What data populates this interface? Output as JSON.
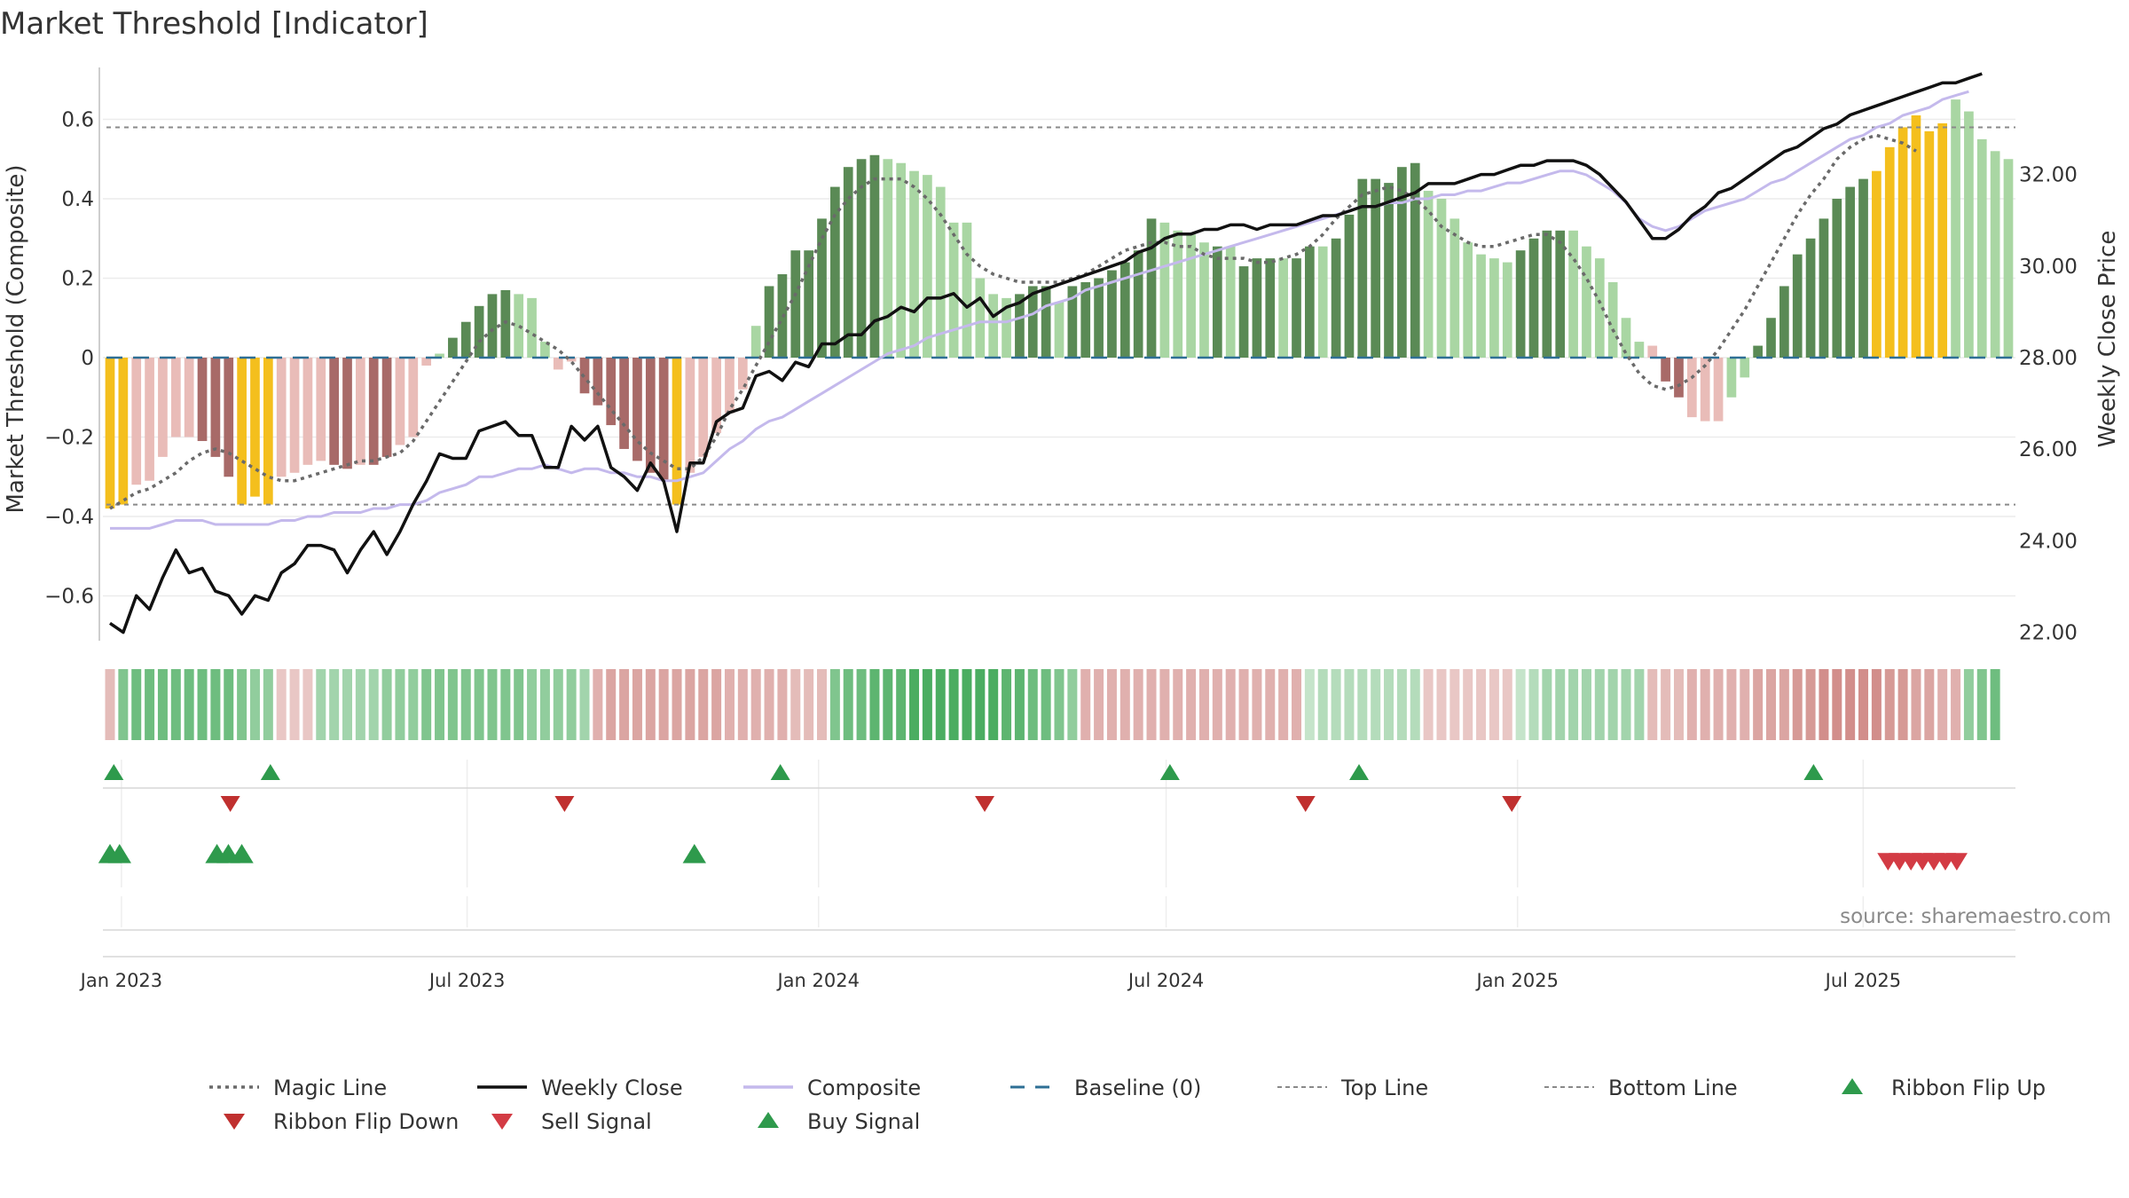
{
  "title": "Market Threshold [Indicator]",
  "source": "source: sharemaestro.com",
  "colors": {
    "bull_strong": "#5a8a55",
    "bull_light": "#a9d6a3",
    "bear_strong": "#a86a68",
    "bear_light": "#e9bcb8",
    "extreme": "#f4bf1d",
    "composite": "#c4b9ec",
    "close": "#111111",
    "magic": "#6a6a6a",
    "baseline": "#2e6f95",
    "buy": "#2e9a4c",
    "sell": "#d33b44"
  },
  "chart_data": {
    "type": "bar",
    "title": "Market Threshold [Indicator]",
    "ylabel_left": "Market Threshold (Composite)",
    "ylabel_right": "Weekly Close Price",
    "ylim_left": [
      -0.72,
      0.72
    ],
    "ylim_right": [
      21.0,
      34.4
    ],
    "left_ticks": [
      0.6,
      0.4,
      0.2,
      0,
      -0.2,
      -0.4,
      -0.6
    ],
    "left_tick_labels": [
      "0.6",
      "0.4",
      "0.2",
      "0",
      "−0.2",
      "−0.4",
      "−0.6"
    ],
    "right_ticks": [
      32,
      30,
      28,
      26,
      24,
      22
    ],
    "right_tick_labels": [
      "32.00",
      "30.00",
      "28.00",
      "26.00",
      "24.00",
      "22.00"
    ],
    "x_start": "2022-12-26",
    "x_end": "2025-09-15",
    "x_ticks": [
      "2023-01-01",
      "2023-07-01",
      "2024-01-01",
      "2024-07-01",
      "2025-01-01",
      "2025-07-01"
    ],
    "x_tick_labels": [
      "Jan 2023",
      "Jul 2023",
      "Jan 2024",
      "Jul 2024",
      "Jan 2025",
      "Jul 2025"
    ],
    "top_line": 0.58,
    "bottom_line": -0.37,
    "grid": true,
    "legend_position": "bottom",
    "weeks": [
      "2022-12-26",
      "2025-09-15"
    ],
    "composite_bars": [
      -0.38,
      -0.37,
      -0.32,
      -0.31,
      -0.25,
      -0.2,
      -0.2,
      -0.21,
      -0.25,
      -0.3,
      -0.37,
      -0.35,
      -0.37,
      -0.3,
      -0.29,
      -0.27,
      -0.26,
      -0.27,
      -0.28,
      -0.27,
      -0.27,
      -0.25,
      -0.22,
      -0.2,
      -0.02,
      0.01,
      0.05,
      0.09,
      0.13,
      0.16,
      0.17,
      0.16,
      0.15,
      0.04,
      -0.03,
      -0.01,
      -0.09,
      -0.12,
      -0.17,
      -0.23,
      -0.26,
      -0.29,
      -0.31,
      -0.37,
      -0.29,
      -0.25,
      -0.19,
      -0.14,
      -0.08,
      0.08,
      0.18,
      0.21,
      0.27,
      0.27,
      0.35,
      0.43,
      0.48,
      0.5,
      0.51,
      0.5,
      0.49,
      0.47,
      0.46,
      0.43,
      0.34,
      0.34,
      0.2,
      0.16,
      0.15,
      0.16,
      0.18,
      0.18,
      0.14,
      0.18,
      0.19,
      0.2,
      0.22,
      0.24,
      0.27,
      0.35,
      0.34,
      0.32,
      0.31,
      0.29,
      0.28,
      0.28,
      0.23,
      0.25,
      0.25,
      0.25,
      0.25,
      0.28,
      0.28,
      0.3,
      0.36,
      0.45,
      0.45,
      0.44,
      0.48,
      0.49,
      0.42,
      0.4,
      0.35,
      0.29,
      0.26,
      0.25,
      0.24,
      0.27,
      0.3,
      0.32,
      0.32,
      0.32,
      0.28,
      0.25,
      0.19,
      0.1,
      0.04,
      0.03,
      -0.06,
      -0.1,
      -0.15,
      -0.16,
      -0.16,
      -0.1,
      -0.05,
      0.03,
      0.1,
      0.18,
      0.26,
      0.3,
      0.35,
      0.4,
      0.43,
      0.45,
      0.47,
      0.53,
      0.58,
      0.61,
      0.57,
      0.59,
      0.65,
      0.62,
      0.55,
      0.52,
      0.5
    ],
    "bar_classes": [
      "Y",
      "Y",
      "BL",
      "BL",
      "BL",
      "BL",
      "BL",
      "BS",
      "BS",
      "BS",
      "Y",
      "Y",
      "Y",
      "BL",
      "BL",
      "BL",
      "BL",
      "BS",
      "BS",
      "BL",
      "BS",
      "BS",
      "BL",
      "BL",
      "BL",
      "GL",
      "GS",
      "GS",
      "GS",
      "GS",
      "GS",
      "GL",
      "GL",
      "GL",
      "BL",
      "BL",
      "BS",
      "BS",
      "BS",
      "BS",
      "BS",
      "BS",
      "BS",
      "Y",
      "BL",
      "BL",
      "BL",
      "BL",
      "BL",
      "GL",
      "GS",
      "GS",
      "GS",
      "GS",
      "GS",
      "GS",
      "GS",
      "GS",
      "GS",
      "GL",
      "GL",
      "GL",
      "GL",
      "GL",
      "GL",
      "GL",
      "GL",
      "GL",
      "GL",
      "GS",
      "GS",
      "GS",
      "GL",
      "GS",
      "GS",
      "GS",
      "GS",
      "GS",
      "GS",
      "GS",
      "GL",
      "GL",
      "GL",
      "GL",
      "GS",
      "GL",
      "GS",
      "GS",
      "GS",
      "GL",
      "GS",
      "GS",
      "GL",
      "GS",
      "GS",
      "GS",
      "GS",
      "GS",
      "GS",
      "GS",
      "GL",
      "GL",
      "GL",
      "GL",
      "GL",
      "GL",
      "GL",
      "GS",
      "GS",
      "GS",
      "GS",
      "GL",
      "GL",
      "GL",
      "GL",
      "GL",
      "GL",
      "BL",
      "BS",
      "BS",
      "BL",
      "BL",
      "BL",
      "GL",
      "GL",
      "GS",
      "GS",
      "GS",
      "GS",
      "GS",
      "GS",
      "GS",
      "GS",
      "GS",
      "Y",
      "Y",
      "Y",
      "Y",
      "Y",
      "Y",
      "GL",
      "GL",
      "GL"
    ],
    "magic_line": [
      -0.38,
      -0.36,
      -0.34,
      -0.33,
      -0.31,
      -0.29,
      -0.26,
      -0.24,
      -0.23,
      -0.24,
      -0.26,
      -0.28,
      -0.3,
      -0.31,
      -0.31,
      -0.3,
      -0.29,
      -0.28,
      -0.27,
      -0.26,
      -0.26,
      -0.25,
      -0.24,
      -0.21,
      -0.16,
      -0.11,
      -0.06,
      -0.01,
      0.04,
      0.07,
      0.09,
      0.08,
      0.06,
      0.04,
      0.02,
      -0.01,
      -0.05,
      -0.09,
      -0.13,
      -0.17,
      -0.21,
      -0.24,
      -0.26,
      -0.28,
      -0.28,
      -0.25,
      -0.2,
      -0.13,
      -0.08,
      -0.02,
      0.04,
      0.1,
      0.16,
      0.23,
      0.3,
      0.36,
      0.4,
      0.43,
      0.45,
      0.45,
      0.45,
      0.43,
      0.4,
      0.36,
      0.31,
      0.26,
      0.23,
      0.21,
      0.2,
      0.19,
      0.19,
      0.19,
      0.19,
      0.2,
      0.21,
      0.23,
      0.25,
      0.27,
      0.28,
      0.29,
      0.29,
      0.28,
      0.28,
      0.26,
      0.25,
      0.25,
      0.25,
      0.24,
      0.24,
      0.25,
      0.26,
      0.28,
      0.31,
      0.35,
      0.38,
      0.41,
      0.42,
      0.43,
      0.42,
      0.4,
      0.37,
      0.33,
      0.31,
      0.29,
      0.28,
      0.28,
      0.29,
      0.3,
      0.31,
      0.31,
      0.29,
      0.25,
      0.2,
      0.14,
      0.07,
      0.01,
      -0.04,
      -0.07,
      -0.08,
      -0.07,
      -0.05,
      -0.02,
      0.02,
      0.07,
      0.12,
      0.18,
      0.24,
      0.3,
      0.36,
      0.41,
      0.45,
      0.5,
      0.53,
      0.55,
      0.56,
      0.55,
      0.54,
      0.52
    ],
    "composite_line": [
      -0.43,
      -0.43,
      -0.43,
      -0.43,
      -0.42,
      -0.41,
      -0.41,
      -0.41,
      -0.42,
      -0.42,
      -0.42,
      -0.42,
      -0.42,
      -0.41,
      -0.41,
      -0.4,
      -0.4,
      -0.39,
      -0.39,
      -0.39,
      -0.38,
      -0.38,
      -0.37,
      -0.37,
      -0.36,
      -0.34,
      -0.33,
      -0.32,
      -0.3,
      -0.3,
      -0.29,
      -0.28,
      -0.28,
      -0.27,
      -0.28,
      -0.29,
      -0.28,
      -0.28,
      -0.29,
      -0.29,
      -0.3,
      -0.3,
      -0.31,
      -0.31,
      -0.3,
      -0.29,
      -0.26,
      -0.23,
      -0.21,
      -0.18,
      -0.16,
      -0.15,
      -0.13,
      -0.11,
      -0.09,
      -0.07,
      -0.05,
      -0.03,
      -0.01,
      0.01,
      0.02,
      0.03,
      0.05,
      0.06,
      0.07,
      0.08,
      0.09,
      0.09,
      0.09,
      0.1,
      0.11,
      0.13,
      0.14,
      0.15,
      0.17,
      0.18,
      0.19,
      0.2,
      0.21,
      0.22,
      0.23,
      0.24,
      0.25,
      0.26,
      0.27,
      0.28,
      0.29,
      0.3,
      0.31,
      0.32,
      0.33,
      0.34,
      0.35,
      0.36,
      0.37,
      0.38,
      0.38,
      0.39,
      0.39,
      0.4,
      0.4,
      0.41,
      0.41,
      0.42,
      0.42,
      0.43,
      0.44,
      0.44,
      0.45,
      0.46,
      0.47,
      0.47,
      0.46,
      0.44,
      0.42,
      0.39,
      0.35,
      0.33,
      0.32,
      0.33,
      0.35,
      0.37,
      0.38,
      0.39,
      0.4,
      0.42,
      0.44,
      0.45,
      0.47,
      0.49,
      0.51,
      0.53,
      0.55,
      0.56,
      0.58,
      0.59,
      0.61,
      0.62,
      0.63,
      0.65,
      0.66,
      0.67
    ],
    "weekly_close": [
      22.2,
      22.0,
      22.8,
      22.5,
      23.2,
      23.8,
      23.3,
      23.4,
      22.9,
      22.8,
      22.4,
      22.8,
      22.7,
      23.3,
      23.5,
      23.9,
      23.9,
      23.8,
      23.3,
      23.8,
      24.2,
      23.7,
      24.2,
      24.8,
      25.3,
      25.9,
      25.8,
      25.8,
      26.4,
      26.5,
      26.6,
      26.3,
      26.3,
      25.6,
      25.6,
      26.5,
      26.2,
      26.5,
      25.6,
      25.4,
      25.1,
      25.7,
      25.3,
      24.2,
      25.7,
      25.7,
      26.6,
      26.8,
      26.9,
      27.6,
      27.7,
      27.5,
      27.9,
      27.8,
      28.3,
      28.3,
      28.5,
      28.5,
      28.8,
      28.9,
      29.1,
      29.0,
      29.3,
      29.3,
      29.4,
      29.1,
      29.3,
      28.9,
      29.1,
      29.2,
      29.4,
      29.5,
      29.6,
      29.7,
      29.8,
      29.9,
      30.0,
      30.1,
      30.3,
      30.4,
      30.6,
      30.7,
      30.7,
      30.8,
      30.8,
      30.9,
      30.9,
      30.8,
      30.9,
      30.9,
      30.9,
      31.0,
      31.1,
      31.1,
      31.2,
      31.3,
      31.3,
      31.4,
      31.5,
      31.6,
      31.8,
      31.8,
      31.8,
      31.9,
      32.0,
      32.0,
      32.1,
      32.2,
      32.2,
      32.3,
      32.3,
      32.3,
      32.2,
      32.0,
      31.7,
      31.4,
      31.0,
      30.6,
      30.6,
      30.8,
      31.1,
      31.3,
      31.6,
      31.7,
      31.9,
      32.1,
      32.3,
      32.5,
      32.6,
      32.8,
      33.0,
      33.1,
      33.3,
      33.4,
      33.5,
      33.6,
      33.7,
      33.8,
      33.9,
      34.0,
      34.0,
      34.1,
      34.2
    ],
    "ribbon_strength": [
      -0.3,
      0.6,
      0.7,
      0.7,
      0.7,
      0.7,
      0.7,
      0.7,
      0.7,
      0.7,
      0.6,
      0.5,
      0.5,
      -0.2,
      -0.2,
      -0.2,
      0.4,
      0.4,
      0.4,
      0.4,
      0.4,
      0.5,
      0.5,
      0.5,
      0.6,
      0.6,
      0.6,
      0.6,
      0.6,
      0.6,
      0.6,
      0.6,
      0.5,
      0.5,
      0.5,
      0.5,
      0.4,
      -0.4,
      -0.5,
      -0.5,
      -0.5,
      -0.5,
      -0.5,
      -0.5,
      -0.5,
      -0.5,
      -0.5,
      -0.4,
      -0.4,
      -0.4,
      -0.4,
      -0.4,
      -0.3,
      -0.3,
      -0.3,
      0.6,
      0.7,
      0.7,
      0.8,
      0.8,
      0.8,
      0.9,
      0.9,
      0.9,
      0.9,
      0.9,
      0.9,
      0.9,
      0.8,
      0.8,
      0.7,
      0.7,
      0.6,
      0.5,
      -0.4,
      -0.4,
      -0.4,
      -0.4,
      -0.4,
      -0.4,
      -0.4,
      -0.4,
      -0.4,
      -0.4,
      -0.4,
      -0.4,
      -0.4,
      -0.4,
      -0.4,
      -0.4,
      -0.4,
      0.2,
      0.3,
      0.3,
      0.3,
      0.3,
      0.3,
      0.3,
      0.3,
      0.3,
      -0.2,
      -0.2,
      -0.2,
      -0.2,
      -0.2,
      -0.2,
      -0.2,
      0.2,
      0.3,
      0.4,
      0.4,
      0.4,
      0.4,
      0.4,
      0.4,
      0.4,
      0.4,
      -0.3,
      -0.3,
      -0.3,
      -0.4,
      -0.4,
      -0.4,
      -0.4,
      -0.4,
      -0.5,
      -0.5,
      -0.5,
      -0.6,
      -0.6,
      -0.7,
      -0.7,
      -0.7,
      -0.7,
      -0.7,
      -0.6,
      -0.6,
      -0.5,
      -0.5,
      -0.4,
      -0.4,
      0.5,
      0.6,
      0.7
    ],
    "ribbon_flip_up": [
      "2022-12-28",
      "2023-03-20",
      "2023-12-12",
      "2024-07-03",
      "2024-10-10",
      "2025-06-05"
    ],
    "ribbon_flip_down": [
      "2023-02-27",
      "2023-08-21",
      "2024-03-28",
      "2024-09-12",
      "2024-12-29"
    ],
    "buy_signal": [
      "2022-12-26",
      "2022-12-31",
      "2023-02-20",
      "2023-02-26",
      "2023-03-05",
      "2023-10-28"
    ],
    "sell_signal": [
      "2025-07-14",
      "2025-07-20",
      "2025-07-26",
      "2025-08-01",
      "2025-08-07",
      "2025-08-13",
      "2025-08-19"
    ]
  },
  "legend": [
    {
      "label": "Magic Line",
      "style": "dotted",
      "color": "#6a6a6a"
    },
    {
      "label": "Weekly Close",
      "style": "solid",
      "color": "#111111"
    },
    {
      "label": "Composite",
      "style": "solid",
      "color": "#c4b9ec"
    },
    {
      "label": "Baseline (0)",
      "style": "dashed",
      "color": "#2e6f95"
    },
    {
      "label": "Top Line",
      "style": "dotted-thin",
      "color": "#8a8a8a"
    },
    {
      "label": "Bottom Line",
      "style": "dotted-thin",
      "color": "#8a8a8a"
    },
    {
      "label": "Ribbon Flip Up",
      "style": "tri-up",
      "color": "#2e9a4c"
    },
    {
      "label": "Ribbon Flip Down",
      "style": "tri-down",
      "color": "#c0302f"
    },
    {
      "label": "Sell Signal",
      "style": "tri-down",
      "color": "#d33b44"
    },
    {
      "label": "Buy Signal",
      "style": "tri-up",
      "color": "#2e9a4c"
    }
  ]
}
